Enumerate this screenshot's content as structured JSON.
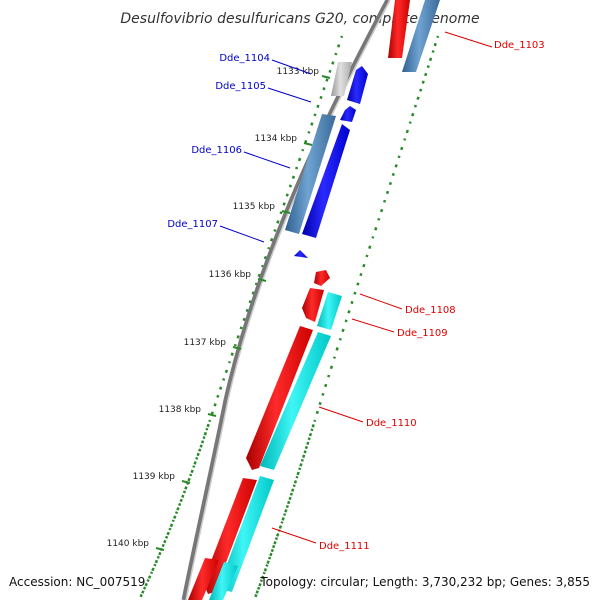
{
  "title": "Desulfovibrio desulfuricans G20, complete genome",
  "footer": {
    "accession": "Accession: NC_007519",
    "topology": "Topology: circular; Length: 3,730,232 bp; Genes: 3,855"
  },
  "ticks": [
    "1133 kbp",
    "1134 kbp",
    "1135 kbp",
    "1136 kbp",
    "1137 kbp",
    "1138 kbp",
    "1139 kbp",
    "1140 kbp"
  ],
  "genes": [
    {
      "label": "Dde_1103",
      "color": "#dd0000"
    },
    {
      "label": "Dde_1104",
      "color": "#0000cc"
    },
    {
      "label": "Dde_1105",
      "color": "#0000cc"
    },
    {
      "label": "Dde_1106",
      "color": "#0000cc"
    },
    {
      "label": "Dde_1107",
      "color": "#0000cc"
    },
    {
      "label": "Dde_1108",
      "color": "#dd0000"
    },
    {
      "label": "Dde_1109",
      "color": "#dd0000"
    },
    {
      "label": "Dde_1110",
      "color": "#dd0000"
    },
    {
      "label": "Dde_1111",
      "color": "#dd0000"
    }
  ],
  "colors": {
    "backbone": "#888888",
    "forward_cds": "#ff0000",
    "forward_rna": "#00e5e5",
    "reverse_cds": "#0000ff",
    "reverse_rna": "#4a7fb0",
    "pseudo": "#bbbbbb",
    "gc_marks": "#2a8a2a"
  }
}
